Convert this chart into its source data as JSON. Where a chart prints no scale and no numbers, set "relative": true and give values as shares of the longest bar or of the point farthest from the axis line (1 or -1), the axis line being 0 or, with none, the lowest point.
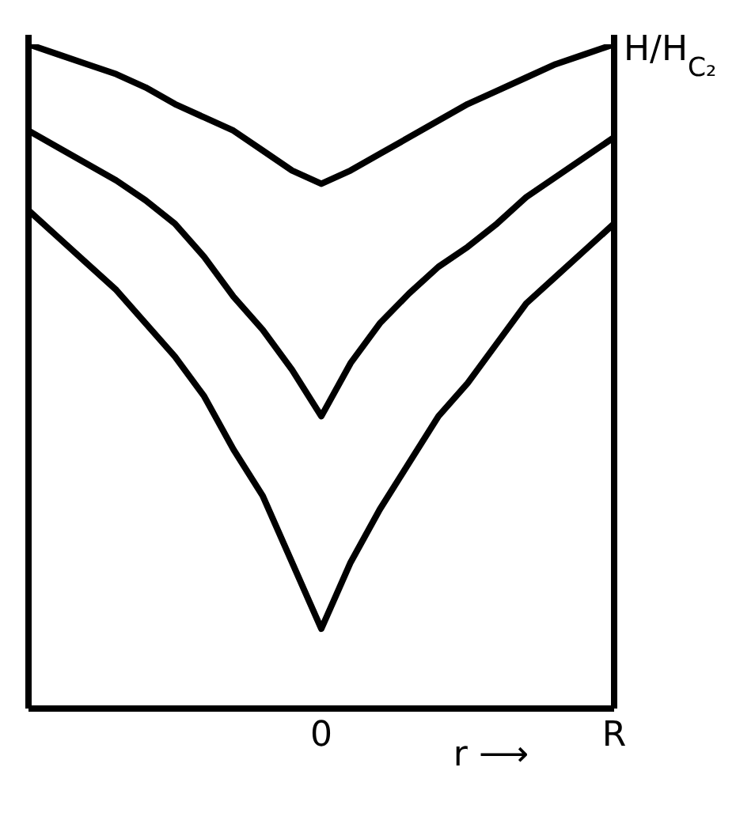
{
  "chart_data": {
    "type": "line",
    "relative": true,
    "xlabel": "r ⟶",
    "ylabel": "H/H$_{C₂}$",
    "categories": [
      null,
      null,
      null,
      null,
      null,
      null,
      null,
      null,
      null,
      null,
      "0",
      null,
      null,
      null,
      null,
      null,
      null,
      null,
      null,
      null,
      "R"
    ],
    "tick_labels": "x",
    "marker": "none",
    "line_style": "solid",
    "series": [
      {
        "color": "#000000",
        "values": [
          1,
          0.985,
          0.97,
          0.955,
          0.935,
          0.91,
          0.89,
          0.87,
          0.84,
          0.81,
          0.79,
          0.81,
          0.835,
          0.86,
          0.885,
          0.91,
          0.93,
          0.95,
          0.97,
          0.985,
          1
        ]
      },
      {
        "color": "#000000",
        "values": [
          0.87,
          0.845,
          0.82,
          0.795,
          0.765,
          0.73,
          0.68,
          0.62,
          0.57,
          0.51,
          0.44,
          0.52,
          0.58,
          0.625,
          0.665,
          0.695,
          0.73,
          0.77,
          0.8,
          0.83,
          0.86
        ]
      },
      {
        "color": "#000000",
        "values": [
          0.75,
          0.71,
          0.67,
          0.63,
          0.58,
          0.53,
          0.47,
          0.39,
          0.32,
          0.22,
          0.12,
          0.22,
          0.3,
          0.37,
          0.44,
          0.49,
          0.55,
          0.61,
          0.65,
          0.69,
          0.73
        ]
      }
    ]
  }
}
